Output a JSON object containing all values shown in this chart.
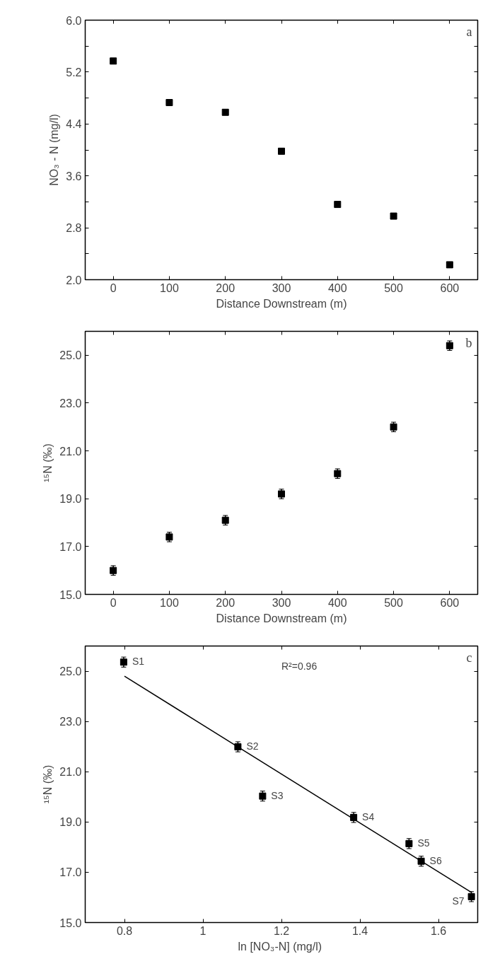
{
  "chart_data": [
    {
      "type": "scatter",
      "xlabel": "Distance Downstream (m)",
      "ylabel": "NO₃ - N (mg/l)",
      "x": [
        0,
        100,
        200,
        300,
        400,
        500,
        600
      ],
      "values": [
        5.37,
        4.73,
        4.58,
        3.98,
        3.16,
        2.98,
        2.23
      ],
      "color": "#000000",
      "marker": "square",
      "grid": false,
      "xlim": [
        -50,
        650
      ],
      "ylim": [
        2.0,
        6.0
      ],
      "xticks": [
        0,
        100,
        200,
        300,
        400,
        500,
        600
      ],
      "yticks": [
        {
          "value": 2.0,
          "label": "2.0"
        },
        {
          "value": 2.4,
          "label": null
        },
        {
          "value": 2.8,
          "label": "2.8"
        },
        {
          "value": 3.2,
          "label": null
        },
        {
          "value": 3.6,
          "label": "3.6"
        },
        {
          "value": 4.0,
          "label": null
        },
        {
          "value": 4.4,
          "label": "4.4"
        },
        {
          "value": 4.8,
          "label": null
        },
        {
          "value": 5.2,
          "label": "5.2"
        },
        {
          "value": 5.6,
          "label": null
        },
        {
          "value": 6.0,
          "label": "6.0"
        }
      ],
      "annotations": [
        "a"
      ]
    },
    {
      "type": "scatter",
      "xlabel": "Distance Downstream (m)",
      "ylabel": "¹⁵N (‰)",
      "x": [
        0,
        100,
        200,
        300,
        400,
        500,
        600
      ],
      "values": [
        16.0,
        17.4,
        18.1,
        19.2,
        20.05,
        22.0,
        25.4
      ],
      "errors": [
        0.2,
        0.2,
        0.2,
        0.2,
        0.2,
        0.2,
        0.2
      ],
      "color": "#000000",
      "marker": "square",
      "grid": false,
      "xlim": [
        -50,
        650
      ],
      "ylim": [
        15.0,
        26.0
      ],
      "xticks": [
        0,
        100,
        200,
        300,
        400,
        500,
        600
      ],
      "yticks": [
        {
          "value": 15,
          "label": "15.0"
        },
        {
          "value": 17,
          "label": "17.0"
        },
        {
          "value": 19,
          "label": "19.0"
        },
        {
          "value": 21,
          "label": "21.0"
        },
        {
          "value": 23,
          "label": "23.0"
        },
        {
          "value": 25,
          "label": "25.0"
        }
      ],
      "annotations": [
        "b"
      ]
    },
    {
      "type": "scatter",
      "xlabel": "ln [NO₃-N]  (mg/l)",
      "ylabel": "¹⁵N (‰)",
      "grid": false,
      "xlim": [
        0.7,
        1.7
      ],
      "ylim": [
        15.0,
        26.0
      ],
      "xticks": [
        0.8,
        1,
        1.2,
        1.4,
        1.6
      ],
      "yticks": [
        {
          "value": 15,
          "label": "15.0"
        },
        {
          "value": 17,
          "label": "17.0"
        },
        {
          "value": 19,
          "label": "19.0"
        },
        {
          "value": 21,
          "label": "21.0"
        },
        {
          "value": 23,
          "label": "23.0"
        },
        {
          "value": 25,
          "label": "25.0"
        }
      ],
      "series": [
        {
          "type": "scatter",
          "marker": "square",
          "color": "#000000",
          "x": [
            0.798,
            1.089,
            1.152,
            1.384,
            1.525,
            1.556,
            1.684
          ],
          "values": [
            25.36,
            21.99,
            20.03,
            19.18,
            18.14,
            17.44,
            16.03
          ],
          "errors": [
            0.2,
            0.2,
            0.2,
            0.2,
            0.2,
            0.2,
            0.2
          ]
        },
        {
          "type": "line",
          "color": "#000000",
          "x": [
            0.8,
            1.684
          ],
          "values": [
            24.8,
            16.2
          ]
        }
      ],
      "annotations": [
        "c",
        "R²=0.96",
        {
          "text": "S1",
          "x": 0.798,
          "y": 25.36
        },
        {
          "text": "S2",
          "x": 1.089,
          "y": 21.99
        },
        {
          "text": "S3",
          "x": 1.152,
          "y": 20.03
        },
        {
          "text": "S4",
          "x": 1.384,
          "y": 19.18
        },
        {
          "text": "S5",
          "x": 1.525,
          "y": 18.14
        },
        {
          "text": "S6",
          "x": 1.556,
          "y": 17.44
        },
        {
          "text": "S7",
          "x": 1.684,
          "y": 16.03
        }
      ]
    }
  ]
}
